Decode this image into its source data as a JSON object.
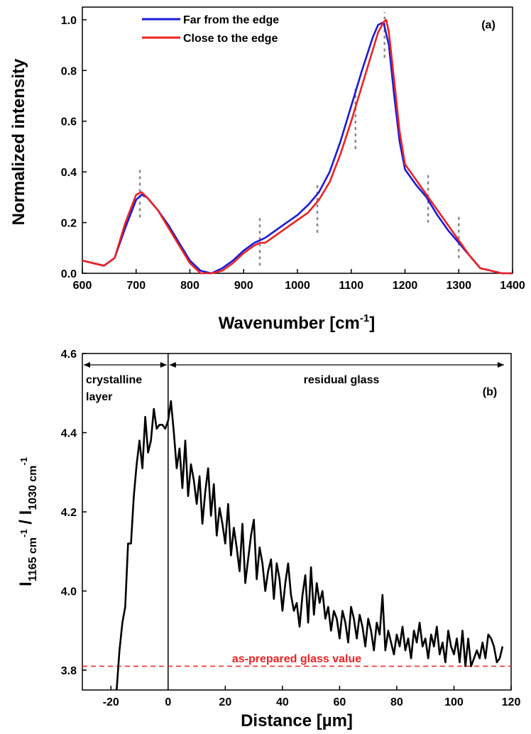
{
  "chart_data": [
    {
      "type": "line",
      "panel_label": "(a)",
      "xlabel": "Wavenumber [cm-1]",
      "xlabel_base": "Wavenumber [cm",
      "xlabel_sup": "-1",
      "xlabel_close": "]",
      "ylabel": "Normalized intensity",
      "xlim": [
        600,
        1400
      ],
      "ylim": [
        0.0,
        1.05
      ],
      "xticks": [
        600,
        700,
        800,
        900,
        1000,
        1100,
        1200,
        1300,
        1400
      ],
      "yticks": [
        0.0,
        0.2,
        0.4,
        0.6,
        0.8,
        1.0
      ],
      "xtick_labels": [
        "600",
        "700",
        "800",
        "900",
        "1000",
        "1100",
        "1200",
        "1300",
        "1400"
      ],
      "ytick_labels": [
        "0.0",
        "0.2",
        "0.4",
        "0.6",
        "0.8",
        "1.0"
      ],
      "legend_position": "top-left",
      "grid": false,
      "series": [
        {
          "name": "Far from the edge",
          "color": "#1a1adb",
          "x": [
            600,
            620,
            640,
            660,
            680,
            700,
            710,
            720,
            740,
            760,
            780,
            800,
            820,
            840,
            860,
            880,
            900,
            920,
            930,
            940,
            960,
            980,
            1000,
            1020,
            1040,
            1060,
            1080,
            1100,
            1120,
            1140,
            1150,
            1160,
            1170,
            1180,
            1190,
            1200,
            1220,
            1240,
            1260,
            1280,
            1300,
            1320,
            1340,
            1360,
            1380,
            1400
          ],
          "y": [
            0.05,
            0.04,
            0.03,
            0.06,
            0.18,
            0.29,
            0.31,
            0.3,
            0.25,
            0.19,
            0.12,
            0.05,
            0.01,
            0.0,
            0.02,
            0.05,
            0.09,
            0.12,
            0.13,
            0.14,
            0.17,
            0.2,
            0.23,
            0.27,
            0.32,
            0.4,
            0.52,
            0.66,
            0.8,
            0.93,
            0.98,
            0.99,
            0.9,
            0.7,
            0.52,
            0.41,
            0.35,
            0.3,
            0.23,
            0.17,
            0.12,
            0.07,
            0.02,
            0.01,
            0.0,
            0.0
          ]
        },
        {
          "name": "Close to the edge",
          "color": "#ee2222",
          "x": [
            600,
            620,
            640,
            660,
            680,
            700,
            710,
            720,
            740,
            760,
            780,
            800,
            820,
            840,
            860,
            880,
            900,
            920,
            930,
            940,
            960,
            980,
            1000,
            1020,
            1040,
            1060,
            1080,
            1100,
            1120,
            1140,
            1150,
            1160,
            1165,
            1170,
            1180,
            1190,
            1200,
            1220,
            1240,
            1260,
            1280,
            1300,
            1320,
            1340,
            1360,
            1380,
            1400
          ],
          "y": [
            0.05,
            0.04,
            0.03,
            0.06,
            0.2,
            0.31,
            0.32,
            0.3,
            0.25,
            0.18,
            0.11,
            0.04,
            0.0,
            0.0,
            0.01,
            0.04,
            0.08,
            0.11,
            0.12,
            0.12,
            0.15,
            0.18,
            0.21,
            0.24,
            0.29,
            0.36,
            0.47,
            0.6,
            0.74,
            0.88,
            0.95,
            0.99,
            1.0,
            0.95,
            0.76,
            0.56,
            0.43,
            0.37,
            0.31,
            0.25,
            0.19,
            0.13,
            0.07,
            0.02,
            0.01,
            0.0,
            0.0
          ]
        }
      ],
      "marker_lines": [
        {
          "x": 707,
          "y": [
            0.22,
            0.41
          ]
        },
        {
          "x": 930,
          "y": [
            0.03,
            0.23
          ]
        },
        {
          "x": 1037,
          "y": [
            0.16,
            0.36
          ]
        },
        {
          "x": 1108,
          "y": [
            0.49,
            0.73
          ]
        },
        {
          "x": 1162,
          "y": [
            0.85,
            1.03
          ]
        },
        {
          "x": 1243,
          "y": [
            0.2,
            0.39
          ]
        },
        {
          "x": 1300,
          "y": [
            0.06,
            0.23
          ]
        }
      ]
    },
    {
      "type": "line",
      "panel_label": "(b)",
      "xlabel": "Distance [µm]",
      "ylabel": "I1165 cm-1 / I1030 cm-1",
      "xlim": [
        -30,
        120
      ],
      "ylim": [
        3.75,
        4.6
      ],
      "xticks": [
        -20,
        0,
        20,
        40,
        60,
        80,
        100,
        120
      ],
      "yticks": [
        3.8,
        4.0,
        4.2,
        4.4,
        4.6
      ],
      "xtick_labels": [
        "-20",
        "0",
        "20",
        "40",
        "60",
        "80",
        "100",
        "120"
      ],
      "ytick_labels": [
        "3.8",
        "4.0",
        "4.2",
        "4.4",
        "4.6"
      ],
      "grid": false,
      "series": [
        {
          "name": "",
          "color": "#000000",
          "x": [
            -18,
            -17,
            -16,
            -15,
            -14,
            -13,
            -12,
            -11,
            -10,
            -9,
            -8,
            -7,
            -6,
            -5,
            -4,
            -3,
            -2,
            -1,
            0,
            1,
            2,
            3,
            4,
            5,
            6,
            7,
            8,
            9,
            10,
            11,
            12,
            13,
            14,
            15,
            16,
            17,
            18,
            19,
            20,
            21,
            22,
            23,
            24,
            25,
            26,
            27,
            28,
            29,
            30,
            31,
            32,
            33,
            34,
            35,
            36,
            37,
            38,
            39,
            40,
            41,
            42,
            43,
            44,
            45,
            46,
            47,
            48,
            49,
            50,
            51,
            52,
            53,
            54,
            55,
            56,
            57,
            58,
            59,
            60,
            61,
            62,
            63,
            64,
            65,
            66,
            67,
            68,
            69,
            70,
            71,
            72,
            73,
            74,
            75,
            76,
            77,
            78,
            79,
            80,
            81,
            82,
            83,
            84,
            85,
            86,
            87,
            88,
            89,
            90,
            91,
            92,
            93,
            94,
            95,
            96,
            97,
            98,
            99,
            100,
            101,
            102,
            103,
            104,
            105,
            106,
            107,
            108,
            109,
            110,
            111,
            112,
            113,
            114,
            115,
            116,
            117
          ],
          "y": [
            3.75,
            3.85,
            3.92,
            3.96,
            4.12,
            4.12,
            4.24,
            4.32,
            4.38,
            4.31,
            4.44,
            4.35,
            4.38,
            4.46,
            4.41,
            4.42,
            4.42,
            4.41,
            4.43,
            4.48,
            4.4,
            4.31,
            4.36,
            4.26,
            4.38,
            4.24,
            4.32,
            4.28,
            4.22,
            4.29,
            4.17,
            4.25,
            4.31,
            4.19,
            4.27,
            4.14,
            4.21,
            4.17,
            4.12,
            4.22,
            4.09,
            4.16,
            4.11,
            4.05,
            4.17,
            4.02,
            4.08,
            4.14,
            4.18,
            4.03,
            4.11,
            4.07,
            4.0,
            4.05,
            4.08,
            3.98,
            4.07,
            4.03,
            3.95,
            4.02,
            4.07,
            3.99,
            3.95,
            3.97,
            3.91,
            3.99,
            4.04,
            3.92,
            4.06,
            3.94,
            4.02,
            3.97,
            4.0,
            3.93,
            3.96,
            3.9,
            3.95,
            3.93,
            3.88,
            3.95,
            3.92,
            3.87,
            3.96,
            3.93,
            3.88,
            3.94,
            3.91,
            3.86,
            3.93,
            3.9,
            3.85,
            3.92,
            3.89,
            3.99,
            3.85,
            3.9,
            3.87,
            3.84,
            3.89,
            3.86,
            3.91,
            3.85,
            3.88,
            3.83,
            3.9,
            3.87,
            3.92,
            3.86,
            3.88,
            3.83,
            3.89,
            3.86,
            3.91,
            3.84,
            3.87,
            3.82,
            3.9,
            3.86,
            3.84,
            3.88,
            3.82,
            3.9,
            3.81,
            3.88,
            3.81,
            3.83,
            3.85,
            3.83,
            3.87,
            3.83,
            3.89,
            3.88,
            3.86,
            3.82,
            3.83,
            3.86
          ]
        }
      ],
      "reference_line": {
        "y": 3.81,
        "label": "as-prepared glass value",
        "color": "#ee2222",
        "style": "dashed"
      },
      "divider_x": 0,
      "region_labels": [
        {
          "lines": [
            "crystalline",
            "layer"
          ],
          "range": [
            -30,
            0
          ]
        },
        {
          "lines": [
            "residual glass"
          ],
          "range": [
            0,
            118
          ]
        }
      ]
    }
  ]
}
